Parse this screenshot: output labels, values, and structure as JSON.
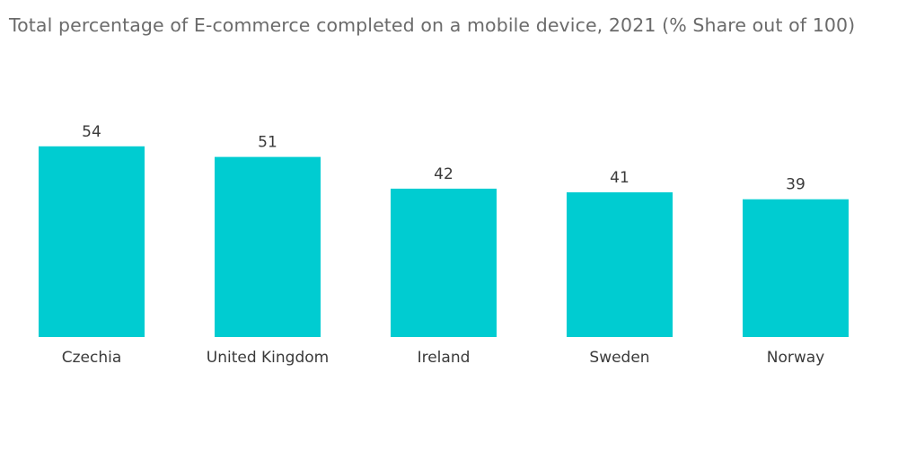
{
  "chart_data": {
    "type": "bar",
    "title": "Total percentage of E-commerce completed on a mobile device, 2021 (% Share out of 100)",
    "categories": [
      "Czechia",
      "United Kingdom",
      "Ireland",
      "Sweden",
      "Norway"
    ],
    "values": [
      54,
      51,
      42,
      41,
      39
    ],
    "xlabel": "",
    "ylabel": "",
    "ylim": [
      0,
      60
    ],
    "grid": false,
    "legend": "none",
    "bar_color": "#00ccd1"
  }
}
